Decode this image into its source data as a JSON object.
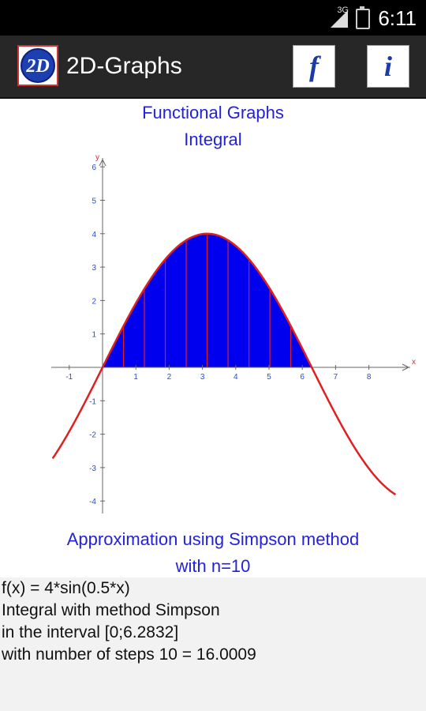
{
  "status": {
    "network": "3G",
    "time": "6:11"
  },
  "appbar": {
    "logo_text": "2D",
    "title": "2D-Graphs",
    "function_button": "f",
    "info_button": "i"
  },
  "graph": {
    "title_line1": "Functional Graphs",
    "title_line2": "Integral",
    "caption_line1": "Approximation using Simpson method",
    "caption_line2": "with n=10"
  },
  "chart_data": {
    "type": "area",
    "function": "4*sin(0.5*x)",
    "xlim": [
      -1.5,
      8.8
    ],
    "ylim": [
      -4.3,
      6.3
    ],
    "x_ticks": [
      "-1",
      "1",
      "2",
      "3",
      "4",
      "5",
      "6",
      "7",
      "8"
    ],
    "y_ticks": [
      "6",
      "5",
      "4",
      "3",
      "2",
      "1",
      "-1",
      "-2",
      "-3",
      "-4"
    ],
    "xlabel": "x",
    "ylabel": "y",
    "interval": [
      0,
      6.2832
    ],
    "steps": 10,
    "curve_color": "#e02020",
    "fill_color": "#0000ee",
    "axis_color": "#666666"
  },
  "results": {
    "line1": "f(x) = 4*sin(0.5*x)",
    "line2": "Integral with method Simpson",
    "line3": "in the interval [0;6.2832]",
    "line4": "with number of steps 10 = 16.0009"
  }
}
